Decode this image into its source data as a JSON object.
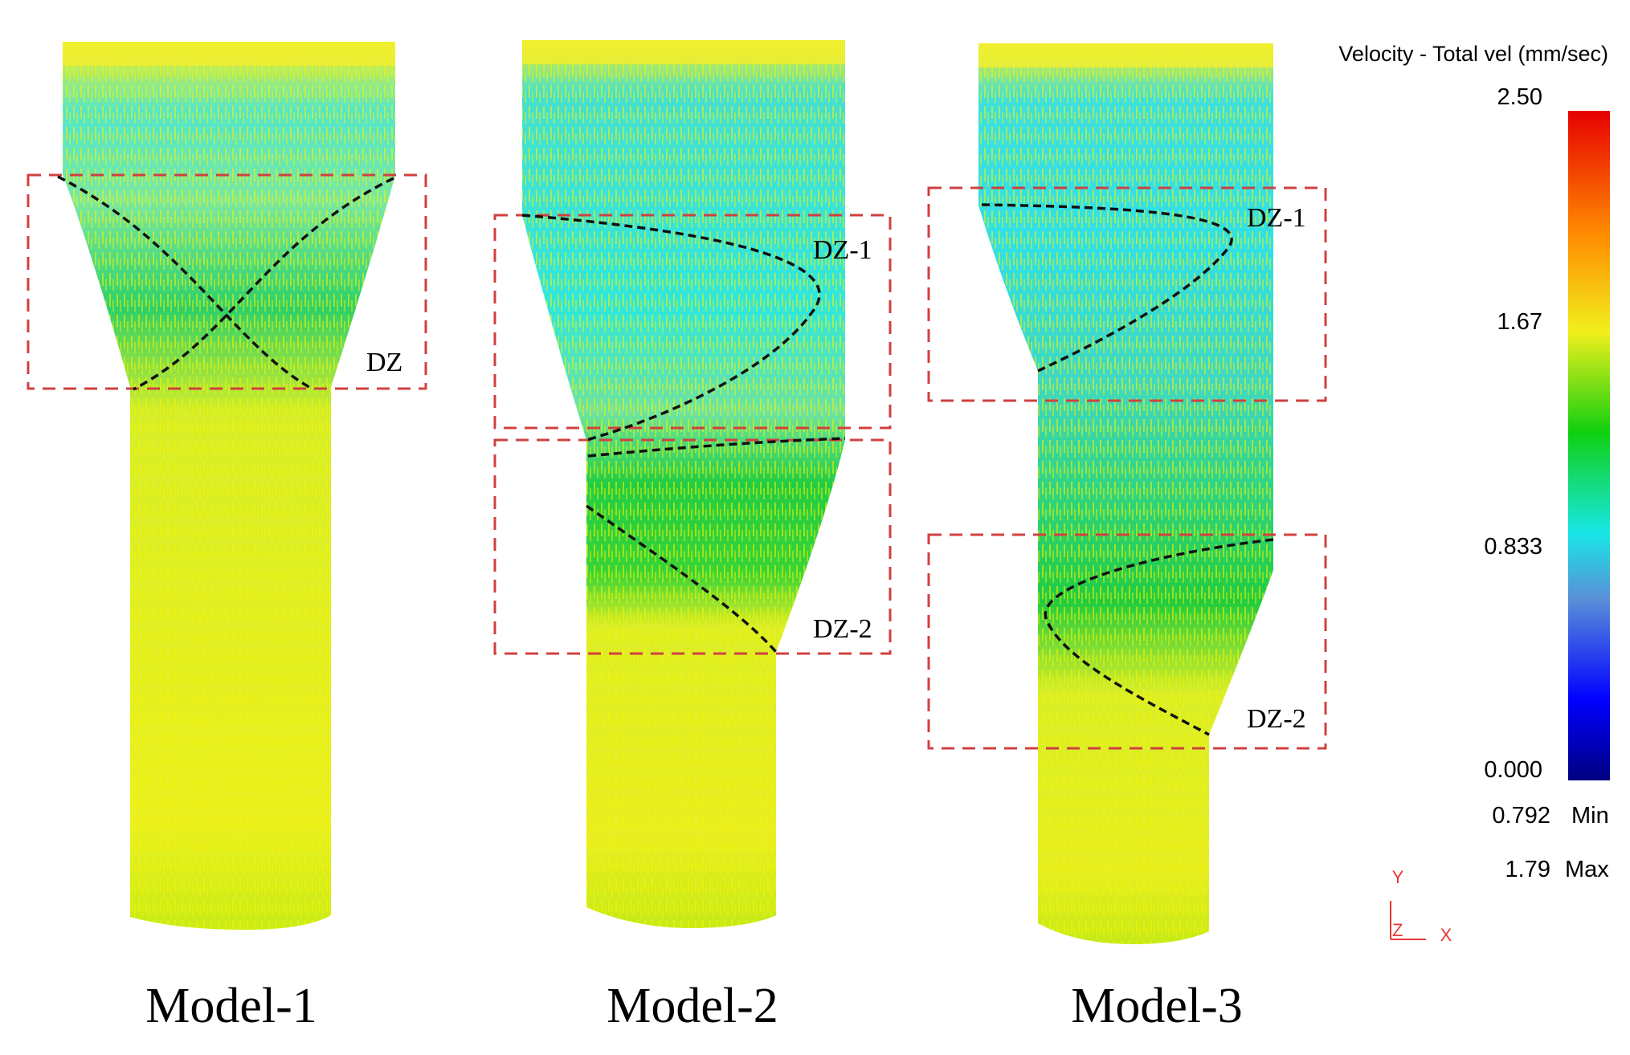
{
  "models": [
    {
      "label": "Model-1",
      "zones": [
        {
          "label": "DZ"
        }
      ]
    },
    {
      "label": "Model-2",
      "zones": [
        {
          "label": "DZ-1"
        },
        {
          "label": "DZ-2"
        }
      ]
    },
    {
      "label": "Model-3",
      "zones": [
        {
          "label": "DZ-1"
        },
        {
          "label": "DZ-2"
        }
      ]
    }
  ],
  "legend": {
    "title": "Velocity - Total vel (mm/sec)",
    "ticks": [
      "2.50",
      "1.67",
      "0.833",
      "0.000"
    ],
    "min_value": "0.792",
    "min_label": "Min",
    "max_value": "1.79",
    "max_label": "Max",
    "colors": [
      "#e60000",
      "#ff8800",
      "#f2ef1c",
      "#10d010",
      "#18e6e6",
      "#5a8fd8",
      "#0000ff",
      "#000080"
    ]
  },
  "axes": {
    "y": "Y",
    "z": "Z",
    "x": "X"
  }
}
